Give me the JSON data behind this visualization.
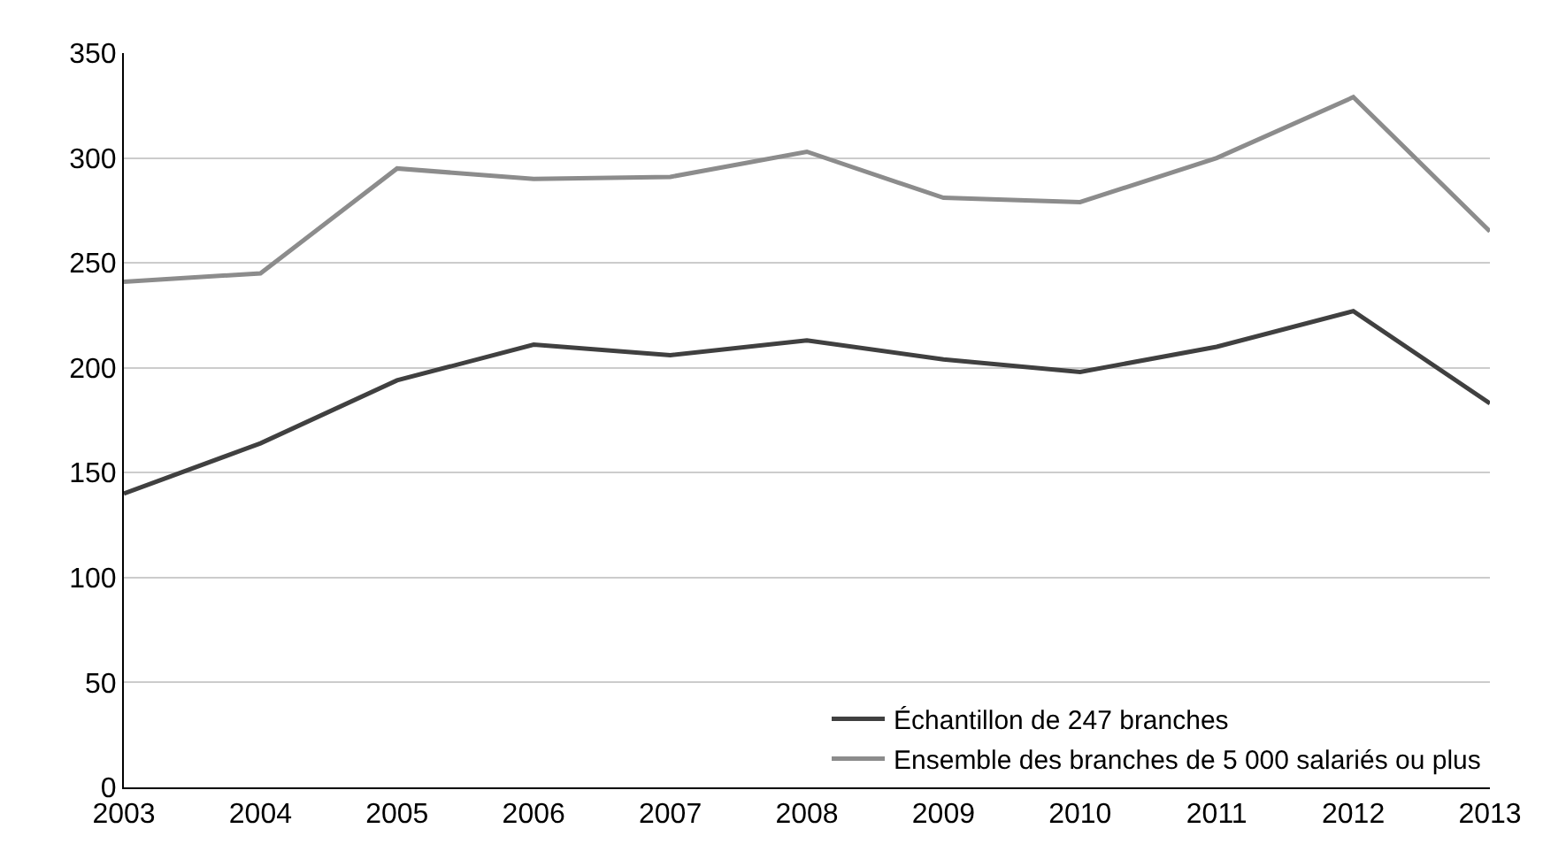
{
  "chart_data": {
    "type": "line",
    "x": [
      2003,
      2004,
      2005,
      2006,
      2007,
      2008,
      2009,
      2010,
      2011,
      2012,
      2013
    ],
    "series": [
      {
        "name": "Échantillon de 247 branches",
        "color": "#404040",
        "values": [
          140,
          164,
          194,
          211,
          206,
          213,
          204,
          198,
          210,
          227,
          183
        ]
      },
      {
        "name": "Ensemble des branches de 5 000 salariés ou plus",
        "color": "#8c8c8c",
        "values": [
          241,
          245,
          295,
          290,
          291,
          303,
          281,
          279,
          300,
          329,
          265
        ]
      }
    ],
    "xlim": [
      2003,
      2013
    ],
    "xticks": [
      2003,
      2004,
      2005,
      2006,
      2007,
      2008,
      2009,
      2010,
      2011,
      2012,
      2013
    ],
    "ylim": [
      0,
      350
    ],
    "yticks": [
      0,
      50,
      100,
      150,
      200,
      250,
      300,
      350
    ],
    "grid": "y",
    "legend": "bottom right",
    "marker": "none",
    "line_style": "solid"
  }
}
